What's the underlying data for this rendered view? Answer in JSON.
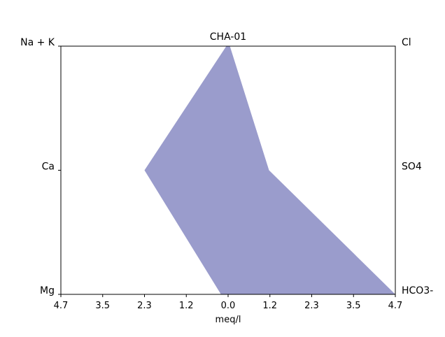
{
  "chart_data": {
    "type": "area",
    "title": "CHA-01",
    "xlabel": "meq/l",
    "xlim": [
      -4.7,
      4.7
    ],
    "x_tick_labels": [
      "4.7",
      "3.5",
      "2.3",
      "1.2",
      "0.0",
      "1.2",
      "2.3",
      "3.5",
      "4.7"
    ],
    "left_labels": [
      "Na + K",
      "Ca",
      "Mg"
    ],
    "right_labels": [
      "Cl",
      "SO4",
      "HCO3-"
    ],
    "series": [
      {
        "color": "#9a9ccc",
        "left_values": [
          0.05,
          2.35,
          0.2
        ],
        "right_values": [
          0.05,
          1.15,
          4.7
        ]
      }
    ],
    "grid": false,
    "colors": {
      "fill": "#9a9ccc",
      "axis": "#000000",
      "background": "#ffffff"
    }
  }
}
